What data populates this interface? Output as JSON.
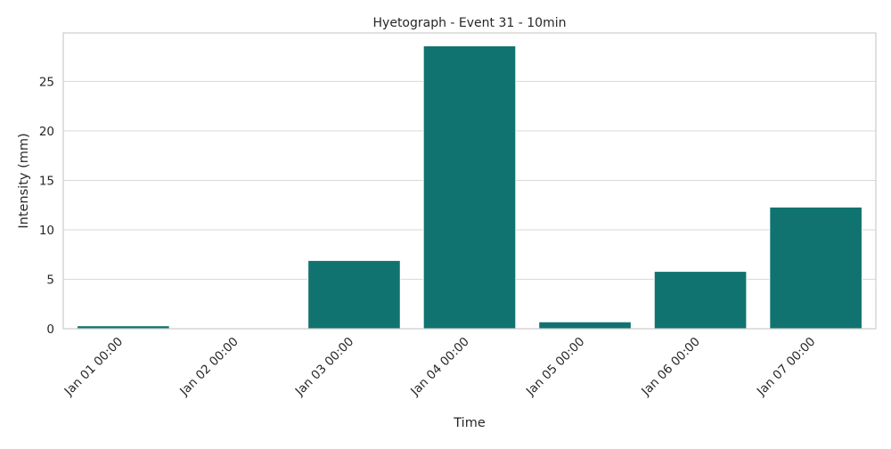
{
  "chart_data": {
    "type": "bar",
    "title": "Hyetograph - Event 31 - 10min",
    "xlabel": "Time",
    "ylabel": "Intensity (mm)",
    "categories": [
      "Jan 01 00:00",
      "Jan 02 00:00",
      "Jan 03 00:00",
      "Jan 04 00:00",
      "Jan 05 00:00",
      "Jan 06 00:00",
      "Jan 07 00:00"
    ],
    "values": [
      0.3,
      0.05,
      6.9,
      28.6,
      0.7,
      5.8,
      12.3
    ],
    "ylim": [
      0,
      29.9
    ],
    "yticks": [
      0,
      5,
      10,
      15,
      20,
      25
    ],
    "grid": true,
    "bar_color": "#117370",
    "grid_color": "#d9d9d9",
    "axis_color": "#cccccc"
  }
}
